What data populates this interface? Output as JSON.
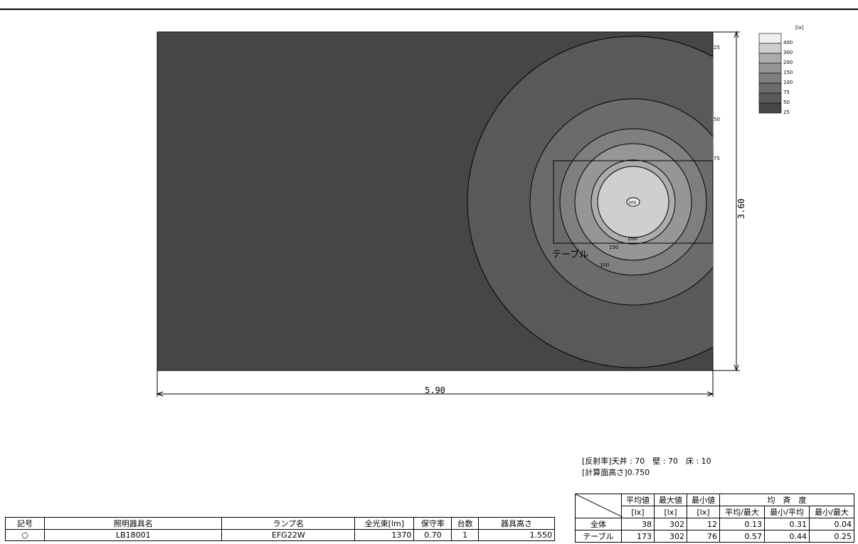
{
  "diagram": {
    "room_width": "5.90",
    "room_depth": "3.60",
    "table_label": "テーブル",
    "contour_labels": {
      "c25": "25",
      "c50": "50",
      "c75": "75",
      "c100": "100",
      "c150": "150",
      "c200": "200",
      "c300": "300"
    },
    "colors": {
      "floor": "#464646",
      "l50": "#595959",
      "l75": "#6b6b6b",
      "l100": "#7f7f7f",
      "l150": "#969696",
      "l200": "#acacac",
      "l300": "#cfcfcf",
      "l400": "#efefef"
    }
  },
  "legend": {
    "unit": "[lx]",
    "levels": [
      "400",
      "300",
      "200",
      "150",
      "100",
      "75",
      "50",
      "25"
    ]
  },
  "conditions": {
    "reflectance": "[反射率]天井 : 70　壁 : 70　床 : 10",
    "calc_height": "[計算面高さ]0.750"
  },
  "luminaire_table": {
    "headers": [
      "記号",
      "照明器具名",
      "ランプ名",
      "全光束[lm]",
      "保守率",
      "台数",
      "器具高さ"
    ],
    "row": {
      "symbol": "○",
      "name": "LB18001",
      "lamp": "EFG22W",
      "flux": "1370",
      "maintenance": "0.70",
      "count": "1",
      "height": "1.550"
    }
  },
  "results_table": {
    "headers": {
      "avg": "平均値",
      "max": "最大値",
      "min": "最小値",
      "uniformity": "均　斉　度",
      "unit": "[lx]",
      "u1": "平均/最大",
      "u2": "最小/平均",
      "u3": "最小/最大"
    },
    "rows": [
      {
        "label": "全体",
        "avg": "38",
        "max": "302",
        "min": "12",
        "u1": "0.13",
        "u2": "0.31",
        "u3": "0.04"
      },
      {
        "label": "テーブル",
        "avg": "173",
        "max": "302",
        "min": "76",
        "u1": "0.57",
        "u2": "0.44",
        "u3": "0.25"
      }
    ]
  }
}
